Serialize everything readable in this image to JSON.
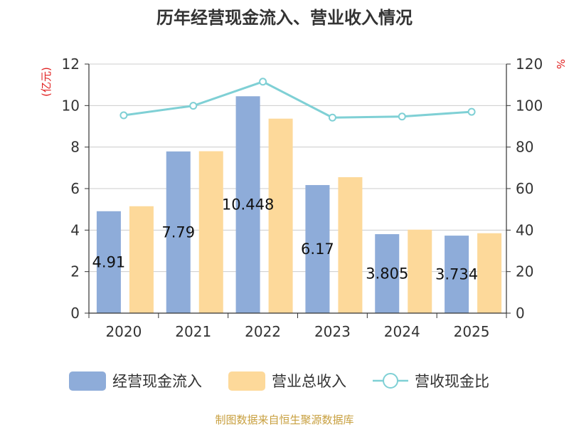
{
  "chart_data": {
    "type": "bar",
    "title": "历年经营现金流入、营业收入情况",
    "categories": [
      "2020",
      "2021",
      "2022",
      "2023",
      "2024",
      "2025"
    ],
    "left_axis": {
      "unit_label": "(亿元)",
      "ylim": [
        0,
        12
      ],
      "ticks": [
        "0",
        "2",
        "4",
        "6",
        "8",
        "10",
        "12"
      ]
    },
    "right_axis": {
      "unit_label": "%",
      "ylim": [
        0,
        120
      ],
      "ticks": [
        "0",
        "20",
        "40",
        "60",
        "80",
        "100",
        "120"
      ]
    },
    "series": [
      {
        "name": "经营现金流入",
        "type": "bar",
        "axis": "left",
        "color": "#8eacd9",
        "values": [
          4.91,
          7.79,
          10.448,
          6.17,
          3.805,
          3.734
        ],
        "data_labels": [
          "4.91",
          "7.79",
          "10.448",
          "6.17",
          "3.805",
          "3.734"
        ]
      },
      {
        "name": "营业总收入",
        "type": "bar",
        "axis": "left",
        "color": "#fdd99a",
        "values": [
          5.15,
          7.8,
          9.37,
          6.55,
          4.02,
          3.85
        ]
      },
      {
        "name": "营收现金比",
        "type": "line",
        "axis": "right",
        "color": "#7fd0d5",
        "values": [
          95.3,
          99.9,
          111.5,
          94.2,
          94.7,
          97.0
        ]
      }
    ],
    "grid": true,
    "legend_position": "bottom"
  },
  "source_text": "制图数据来自恒生聚源数据库"
}
